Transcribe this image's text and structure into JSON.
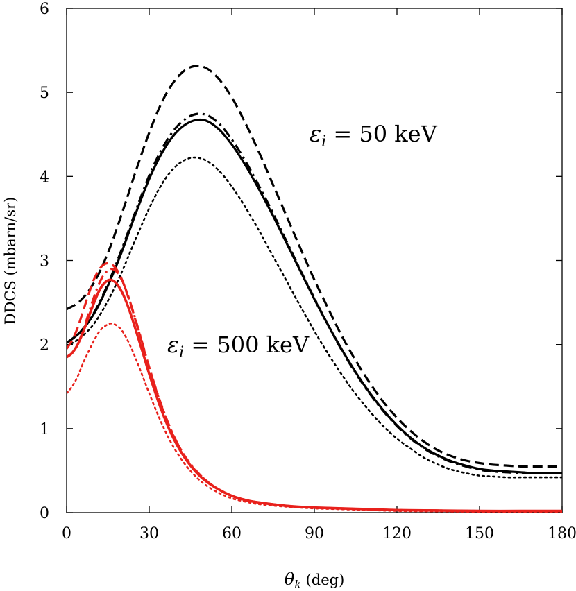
{
  "chart_data": {
    "type": "line",
    "xlabel": "θ_k (deg)",
    "xlabel_symbol": "θ",
    "xlabel_sub": "k",
    "xlabel_unit": " (deg)",
    "ylabel": "DDCS (mbarn/sr)",
    "xlim": [
      0,
      180
    ],
    "ylim": [
      0,
      6
    ],
    "xticks": [
      0,
      30,
      60,
      90,
      120,
      150,
      180
    ],
    "yticks": [
      0,
      1,
      2,
      3,
      4,
      5,
      6
    ],
    "grid": false,
    "legend": "none",
    "annotations": [
      {
        "name": "annotation-50kev",
        "symbol": "ε",
        "sub": "i",
        "text": " = 50 keV",
        "x": 88,
        "y": 4.45
      },
      {
        "name": "annotation-500kev",
        "symbol": "ε",
        "sub": "i",
        "text": " = 500 keV",
        "x": 37,
        "y": 1.95
      }
    ],
    "series": [
      {
        "group": "50 keV",
        "color": "#000000",
        "dash": "solid",
        "width": 3.2,
        "x": [
          0,
          5,
          10,
          15,
          20,
          25,
          30,
          35,
          40,
          45,
          50,
          55,
          60,
          65,
          70,
          75,
          80,
          85,
          90,
          95,
          100,
          105,
          110,
          115,
          120,
          125,
          130,
          135,
          140,
          145,
          150,
          155,
          160,
          165,
          170,
          175,
          180
        ],
        "y": [
          2.02,
          2.15,
          2.37,
          2.7,
          3.1,
          3.55,
          3.97,
          4.3,
          4.53,
          4.65,
          4.67,
          4.57,
          4.38,
          4.13,
          3.84,
          3.53,
          3.2,
          2.87,
          2.54,
          2.23,
          1.94,
          1.67,
          1.43,
          1.22,
          1.04,
          0.89,
          0.77,
          0.68,
          0.61,
          0.56,
          0.52,
          0.5,
          0.49,
          0.48,
          0.47,
          0.47,
          0.47
        ]
      },
      {
        "group": "50 keV",
        "color": "#000000",
        "dash": "dashdot",
        "width": 3.2,
        "x": [
          0,
          5,
          10,
          15,
          20,
          25,
          30,
          35,
          40,
          45,
          50,
          55,
          60,
          65,
          70,
          75,
          80,
          85,
          90,
          95,
          100,
          105,
          110,
          115,
          120,
          125,
          130,
          135,
          140,
          145,
          150,
          155,
          160,
          165,
          170,
          175,
          180
        ],
        "y": [
          2.02,
          2.15,
          2.38,
          2.72,
          3.13,
          3.58,
          4.01,
          4.35,
          4.59,
          4.72,
          4.74,
          4.64,
          4.44,
          4.18,
          3.88,
          3.56,
          3.22,
          2.88,
          2.55,
          2.23,
          1.93,
          1.66,
          1.42,
          1.21,
          1.03,
          0.88,
          0.76,
          0.67,
          0.6,
          0.55,
          0.51,
          0.49,
          0.48,
          0.47,
          0.47,
          0.47,
          0.47
        ]
      },
      {
        "group": "50 keV",
        "color": "#000000",
        "dash": "dashed",
        "width": 3.2,
        "x": [
          0,
          5,
          10,
          15,
          20,
          25,
          30,
          35,
          40,
          45,
          50,
          55,
          60,
          65,
          70,
          75,
          80,
          85,
          90,
          95,
          100,
          105,
          110,
          115,
          120,
          125,
          130,
          135,
          140,
          145,
          150,
          155,
          160,
          165,
          170,
          175,
          180
        ],
        "y": [
          2.42,
          2.52,
          2.74,
          3.09,
          3.55,
          4.05,
          4.52,
          4.91,
          5.17,
          5.3,
          5.3,
          5.17,
          4.94,
          4.63,
          4.28,
          3.9,
          3.52,
          3.14,
          2.77,
          2.43,
          2.1,
          1.81,
          1.55,
          1.32,
          1.13,
          0.97,
          0.84,
          0.74,
          0.67,
          0.62,
          0.59,
          0.57,
          0.56,
          0.55,
          0.55,
          0.55,
          0.55
        ]
      },
      {
        "group": "50 keV",
        "color": "#000000",
        "dash": "dotted",
        "width": 2.6,
        "x": [
          0,
          5,
          10,
          15,
          20,
          25,
          30,
          35,
          40,
          45,
          50,
          55,
          60,
          65,
          70,
          75,
          80,
          85,
          90,
          95,
          100,
          105,
          110,
          115,
          120,
          125,
          130,
          135,
          140,
          145,
          150,
          155,
          160,
          165,
          170,
          175,
          180
        ],
        "y": [
          1.98,
          2.08,
          2.25,
          2.52,
          2.86,
          3.25,
          3.62,
          3.93,
          4.13,
          4.22,
          4.2,
          4.08,
          3.88,
          3.63,
          3.35,
          3.05,
          2.75,
          2.45,
          2.16,
          1.89,
          1.64,
          1.41,
          1.21,
          1.03,
          0.88,
          0.76,
          0.65,
          0.57,
          0.51,
          0.47,
          0.44,
          0.43,
          0.42,
          0.42,
          0.42,
          0.42,
          0.42
        ]
      },
      {
        "group": "500 keV",
        "color": "#e8211c",
        "dash": "solid",
        "width": 3.6,
        "x": [
          0,
          2,
          4,
          6,
          8,
          10,
          12,
          14,
          16,
          18,
          20,
          22,
          24,
          26,
          28,
          30,
          34,
          38,
          42,
          46,
          50,
          55,
          60,
          65,
          70,
          80,
          90,
          100,
          110,
          120,
          135,
          150,
          165,
          180
        ],
        "y": [
          1.85,
          1.9,
          2.0,
          2.15,
          2.33,
          2.5,
          2.65,
          2.74,
          2.77,
          2.73,
          2.63,
          2.48,
          2.29,
          2.08,
          1.87,
          1.65,
          1.26,
          0.94,
          0.7,
          0.52,
          0.39,
          0.28,
          0.2,
          0.15,
          0.12,
          0.08,
          0.06,
          0.05,
          0.04,
          0.03,
          0.025,
          0.02,
          0.02,
          0.02
        ]
      },
      {
        "group": "500 keV",
        "color": "#e8211c",
        "dash": "dashdot",
        "width": 3.2,
        "x": [
          0,
          2,
          4,
          6,
          8,
          10,
          12,
          14,
          16,
          18,
          20,
          22,
          24,
          26,
          28,
          30,
          34,
          38,
          42,
          46,
          50,
          55,
          60,
          65,
          70,
          80,
          90,
          100,
          110,
          120,
          135,
          150,
          165,
          180
        ],
        "y": [
          1.85,
          1.9,
          2.0,
          2.17,
          2.37,
          2.57,
          2.74,
          2.85,
          2.9,
          2.87,
          2.77,
          2.61,
          2.41,
          2.19,
          1.96,
          1.73,
          1.32,
          0.98,
          0.72,
          0.54,
          0.4,
          0.28,
          0.2,
          0.15,
          0.12,
          0.08,
          0.06,
          0.05,
          0.04,
          0.03,
          0.025,
          0.02,
          0.02,
          0.02
        ]
      },
      {
        "group": "500 keV",
        "color": "#e8211c",
        "dash": "dashed",
        "width": 3.2,
        "x": [
          0,
          2,
          4,
          6,
          8,
          10,
          12,
          14,
          16,
          18,
          20,
          22,
          24,
          26,
          28,
          30,
          34,
          38,
          42,
          46,
          50,
          55,
          60,
          65,
          70,
          80,
          90,
          100,
          110,
          120,
          135,
          150,
          165,
          180
        ],
        "y": [
          1.95,
          2.05,
          2.2,
          2.4,
          2.6,
          2.78,
          2.9,
          2.96,
          2.96,
          2.9,
          2.78,
          2.6,
          2.4,
          2.18,
          1.95,
          1.72,
          1.31,
          0.97,
          0.72,
          0.53,
          0.4,
          0.28,
          0.2,
          0.15,
          0.12,
          0.08,
          0.06,
          0.05,
          0.04,
          0.03,
          0.025,
          0.02,
          0.02,
          0.02
        ]
      },
      {
        "group": "500 keV",
        "color": "#e8211c",
        "dash": "dotted",
        "width": 2.6,
        "x": [
          0,
          2,
          4,
          6,
          8,
          10,
          12,
          14,
          16,
          18,
          20,
          22,
          24,
          26,
          28,
          30,
          34,
          38,
          42,
          46,
          50,
          55,
          60,
          65,
          70,
          80,
          90,
          100,
          110,
          120,
          135,
          150,
          165,
          180
        ],
        "y": [
          1.42,
          1.5,
          1.62,
          1.78,
          1.92,
          2.05,
          2.16,
          2.22,
          2.25,
          2.23,
          2.17,
          2.06,
          1.92,
          1.76,
          1.59,
          1.42,
          1.1,
          0.83,
          0.62,
          0.46,
          0.34,
          0.24,
          0.17,
          0.13,
          0.1,
          0.07,
          0.05,
          0.04,
          0.03,
          0.02,
          0.015,
          0.01,
          0.01,
          0.01
        ]
      }
    ]
  }
}
